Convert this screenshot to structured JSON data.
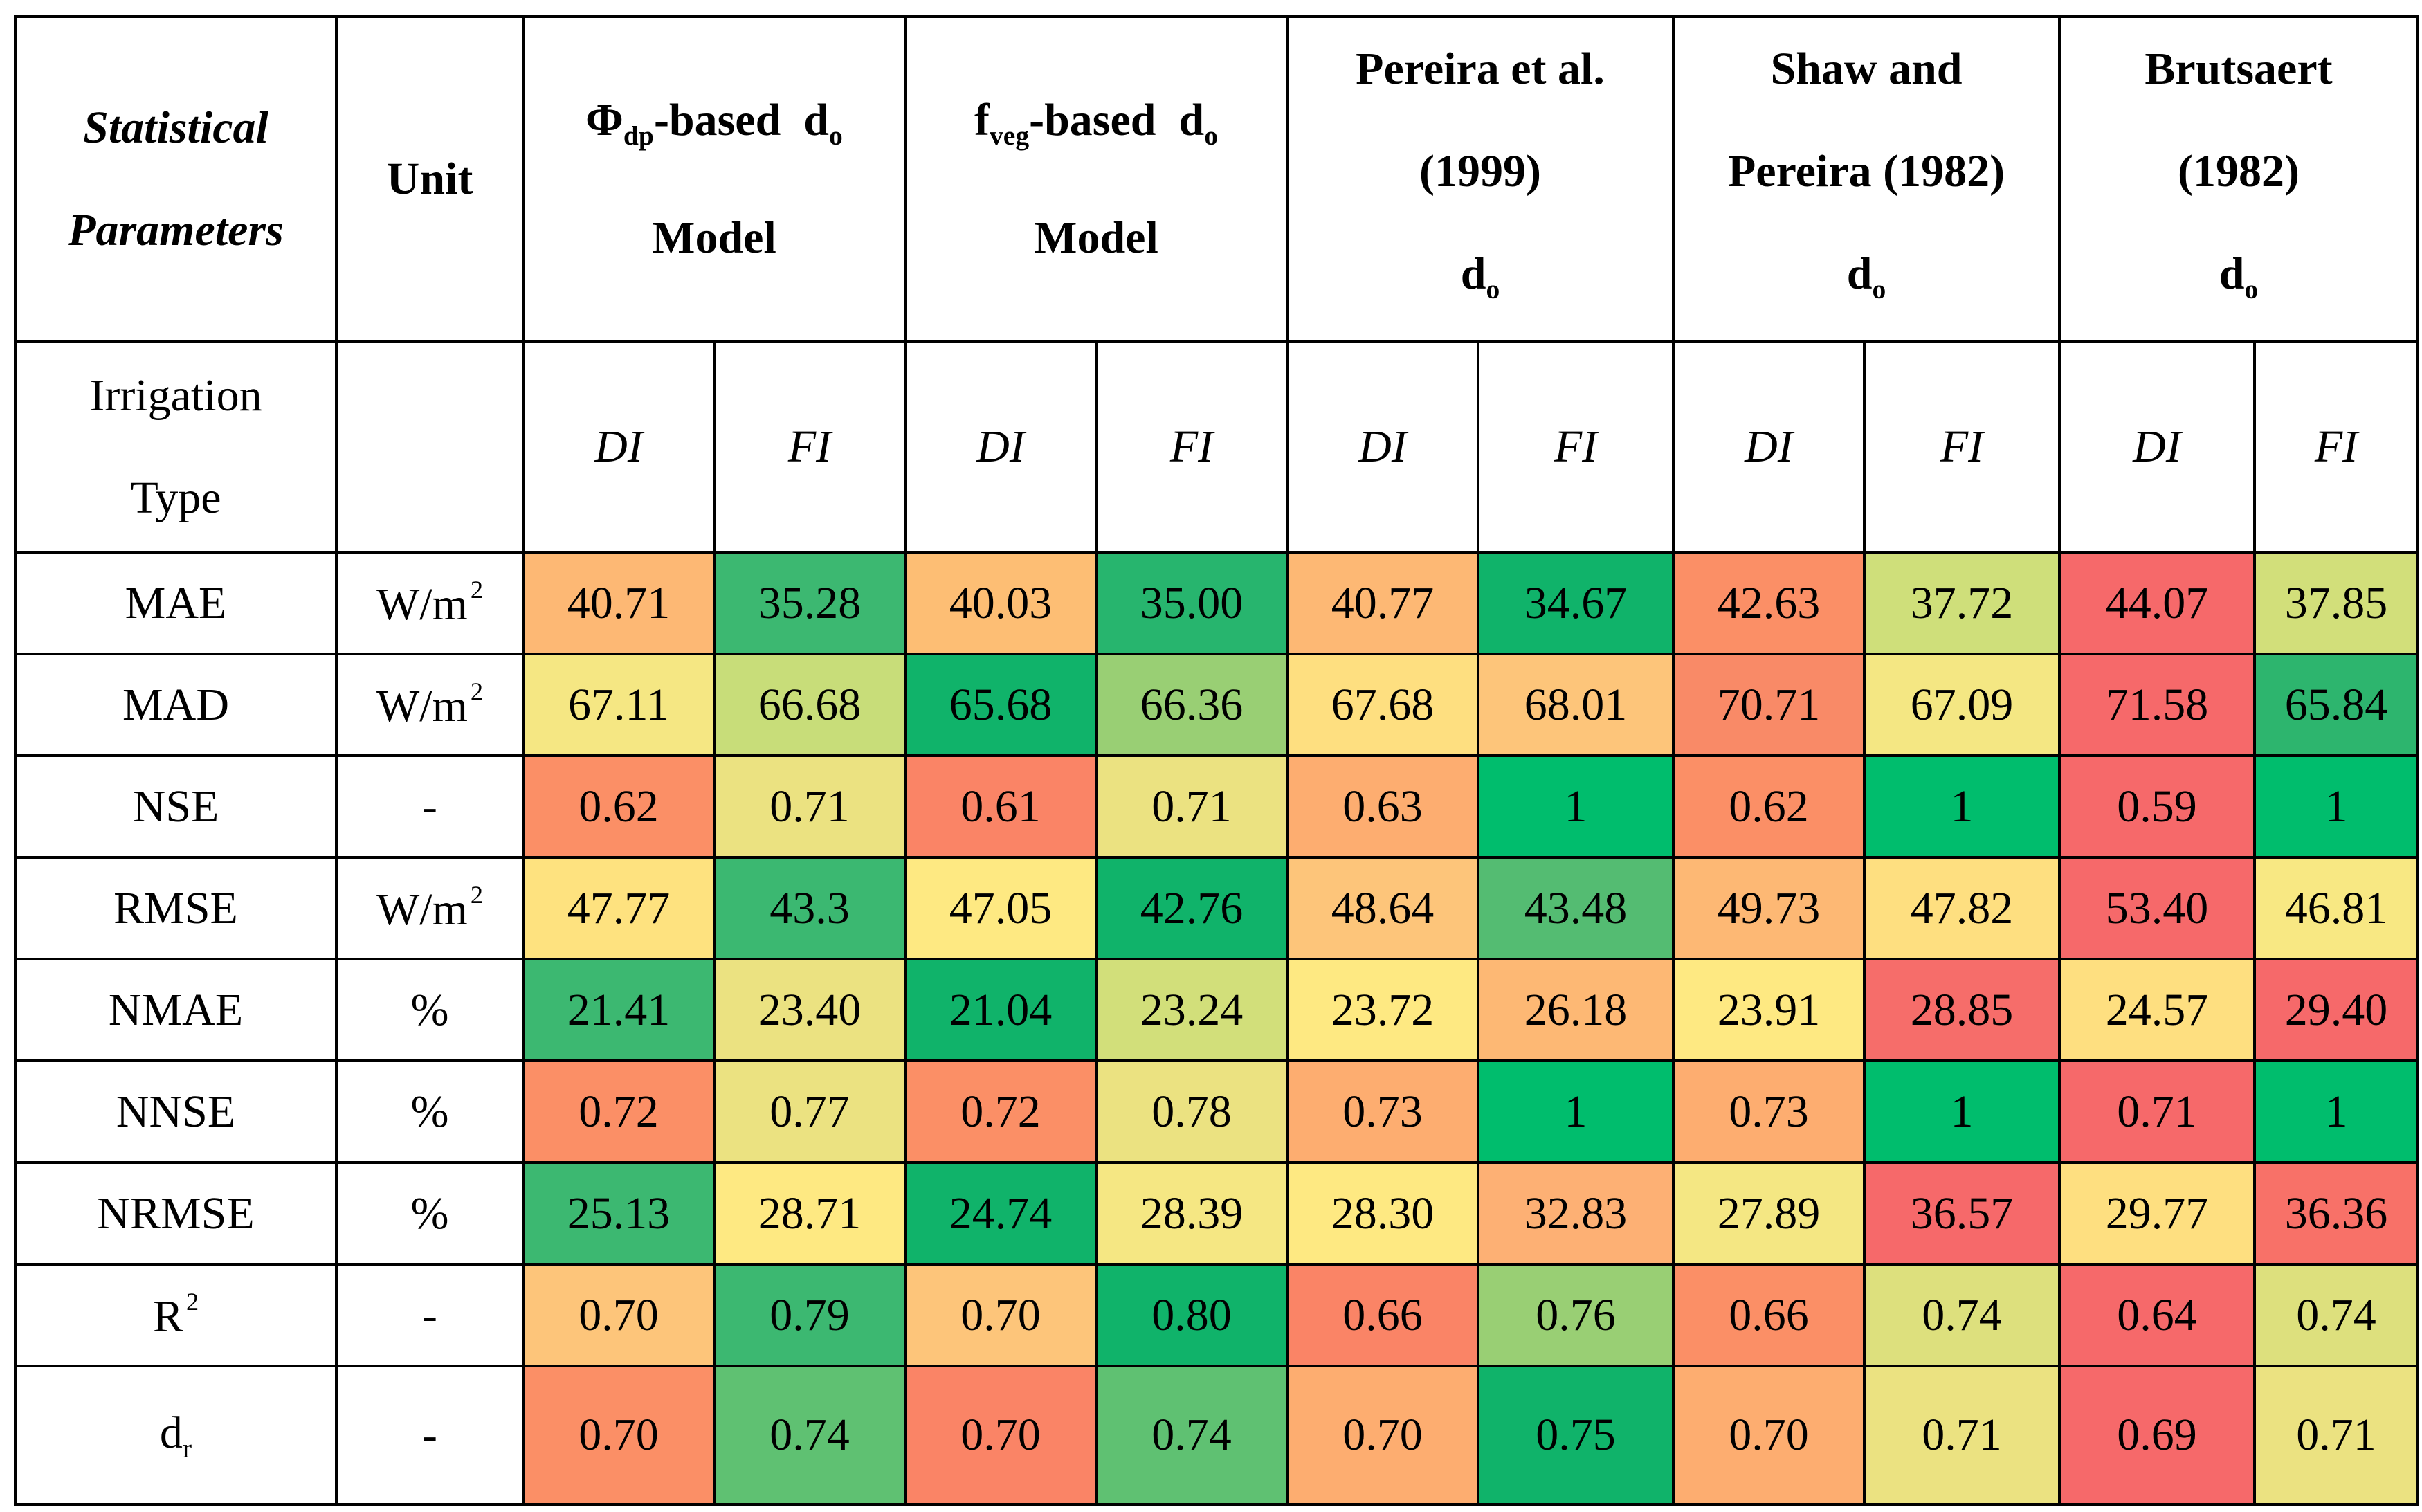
{
  "headers": {
    "param_line1": "Statistical",
    "param_line2": "Parameters",
    "unit": "Unit",
    "m1_sym": "Φ",
    "m1_sub": "dp",
    "m1_mid": "-based  d",
    "m1_sub2": "o",
    "m1_line2": "Model",
    "m2_sym": "f",
    "m2_sub": "veg",
    "m2_mid": "-based  d",
    "m2_sub2": "o",
    "m2_line2": "Model",
    "m3_line1": "Pereira et al.",
    "m3_line2": "(1999)",
    "m3_d": "d",
    "m3_sub": "o",
    "m4_line1": "Shaw and",
    "m4_line2": "Pereira (1982)",
    "m4_d": "d",
    "m4_sub": "o",
    "m5_line1": "Brutsaert",
    "m5_line2": "(1982)",
    "m5_d": "d",
    "m5_sub": "o"
  },
  "irrigation": {
    "label_line1": "Irrigation",
    "label_line2": "Type",
    "types": [
      "DI",
      "FI",
      "DI",
      "FI",
      "DI",
      "FI",
      "DI",
      "FI",
      "DI",
      "FI"
    ]
  },
  "rows": [
    {
      "param": "MAE",
      "unit": "W/m",
      "unit_sup": "2",
      "values": [
        "40.71",
        "35.28",
        "40.03",
        "35.00",
        "40.77",
        "34.67",
        "42.63",
        "37.72",
        "44.07",
        "37.85"
      ],
      "colors": [
        "#fdb874",
        "#3cb871",
        "#fdbe74",
        "#27b56e",
        "#fdb874",
        "#10b36a",
        "#fb8f66",
        "#cfdf7a",
        "#f6696a",
        "#d2df7a"
      ]
    },
    {
      "param": "MAD",
      "unit": "W/m",
      "unit_sup": "2",
      "values": [
        "67.11",
        "66.68",
        "65.68",
        "66.36",
        "67.68",
        "68.01",
        "70.71",
        "67.09",
        "71.58",
        "65.84"
      ],
      "colors": [
        "#f5e783",
        "#c8dd79",
        "#10b36a",
        "#99cf74",
        "#fedf80",
        "#fdc57a",
        "#f98a67",
        "#f4e783",
        "#f6696a",
        "#2db56e"
      ]
    },
    {
      "param": "NSE",
      "unit": "-",
      "unit_sup": "",
      "values": [
        "0.62",
        "0.71",
        "0.61",
        "0.71",
        "0.63",
        "1",
        "0.62",
        "1",
        "0.59",
        "1"
      ],
      "colors": [
        "#fb8f66",
        "#ebe281",
        "#fa8466",
        "#ebe281",
        "#fdad70",
        "#00bd6d",
        "#fb8f66",
        "#00bd6d",
        "#f6696a",
        "#00bd6d"
      ]
    },
    {
      "param": "RMSE",
      "unit": "W/m",
      "unit_sup": "2",
      "values": [
        "47.77",
        "43.3",
        "47.05",
        "42.76",
        "48.64",
        "43.48",
        "49.73",
        "47.82",
        "53.40",
        "46.81"
      ],
      "colors": [
        "#fee27f",
        "#3bb871",
        "#fee982",
        "#10b36a",
        "#fdc57a",
        "#54bc72",
        "#fdb874",
        "#fedf80",
        "#f6696a",
        "#f8e883"
      ]
    },
    {
      "param": "NMAE",
      "unit": "%",
      "unit_sup": "",
      "values": [
        "21.41",
        "23.40",
        "21.04",
        "23.24",
        "23.72",
        "26.18",
        "23.91",
        "28.85",
        "24.57",
        "29.40"
      ],
      "colors": [
        "#3cb871",
        "#ebe281",
        "#10b36a",
        "#d2df7a",
        "#fee982",
        "#fdb874",
        "#fee982",
        "#f66d6a",
        "#fedf80",
        "#f6696a"
      ]
    },
    {
      "param": "NNSE",
      "unit": "%",
      "unit_sup": "",
      "values": [
        "0.72",
        "0.77",
        "0.72",
        "0.78",
        "0.73",
        "1",
        "0.73",
        "1",
        "0.71",
        "1"
      ],
      "colors": [
        "#fb8f66",
        "#ebe281",
        "#fb8f66",
        "#ebe281",
        "#fdad70",
        "#00bd6d",
        "#fdad70",
        "#00bd6d",
        "#f6696a",
        "#00bd6d"
      ]
    },
    {
      "param": "NRMSE",
      "unit": "%",
      "unit_sup": "",
      "values": [
        "25.13",
        "28.71",
        "24.74",
        "28.39",
        "28.30",
        "32.83",
        "27.89",
        "36.57",
        "29.77",
        "36.36"
      ],
      "colors": [
        "#3cb871",
        "#fee982",
        "#10b36a",
        "#f5e783",
        "#fee982",
        "#fdb074",
        "#f4e783",
        "#f6696a",
        "#fedf80",
        "#f87168"
      ]
    },
    {
      "param": "R",
      "param_sup": "2",
      "unit": "-",
      "unit_sup": "",
      "values": [
        "0.70",
        "0.79",
        "0.70",
        "0.80",
        "0.66",
        "0.76",
        "0.66",
        "0.74",
        "0.64",
        "0.74"
      ],
      "colors": [
        "#fdc57a",
        "#3cb871",
        "#fdc57a",
        "#10b36a",
        "#fa8466",
        "#99cf74",
        "#fb8f66",
        "#dde07d",
        "#f6696a",
        "#dde07d"
      ]
    },
    {
      "param": "d",
      "param_sub": "r",
      "unit": "-",
      "unit_sup": "",
      "values": [
        "0.70",
        "0.74",
        "0.70",
        "0.74",
        "0.70",
        "0.75",
        "0.70",
        "0.71",
        "0.69",
        "0.71"
      ],
      "colors": [
        "#fb8f66",
        "#5fc172",
        "#fa8466",
        "#5fc172",
        "#fdad70",
        "#10b36a",
        "#fdad70",
        "#ebe281",
        "#f6696a",
        "#ebe281"
      ]
    }
  ]
}
